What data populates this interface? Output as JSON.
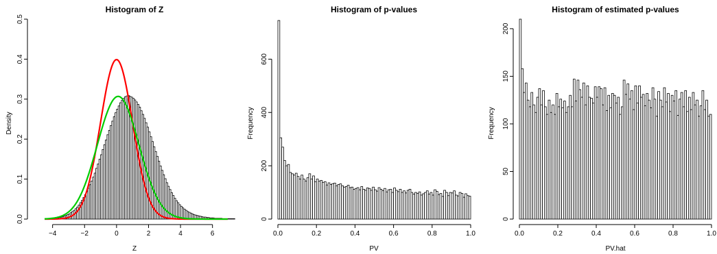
{
  "chart_data": [
    {
      "type": "histogram",
      "title": "Histogram of Z",
      "xlabel": "Z",
      "ylabel": "Density",
      "xlim": [
        -4.8,
        7.0
      ],
      "ylim": [
        0,
        0.5
      ],
      "xticks": [
        -4,
        -2,
        0,
        2,
        4,
        6
      ],
      "yticks": [
        0.0,
        0.1,
        0.2,
        0.3,
        0.4,
        0.5
      ],
      "bin_start": -4.2,
      "bin_width": 0.1,
      "densities": [
        0.001,
        0.001,
        0.002,
        0.002,
        0.003,
        0.003,
        0.004,
        0.005,
        0.006,
        0.008,
        0.009,
        0.011,
        0.013,
        0.016,
        0.019,
        0.022,
        0.026,
        0.03,
        0.035,
        0.041,
        0.047,
        0.054,
        0.061,
        0.069,
        0.077,
        0.086,
        0.095,
        0.105,
        0.115,
        0.127,
        0.138,
        0.15,
        0.161,
        0.174,
        0.186,
        0.198,
        0.211,
        0.222,
        0.234,
        0.245,
        0.256,
        0.266,
        0.275,
        0.283,
        0.291,
        0.297,
        0.302,
        0.306,
        0.308,
        0.309,
        0.307,
        0.305,
        0.302,
        0.298,
        0.293,
        0.287,
        0.28,
        0.271,
        0.262,
        0.252,
        0.241,
        0.23,
        0.218,
        0.206,
        0.194,
        0.181,
        0.169,
        0.157,
        0.145,
        0.133,
        0.122,
        0.111,
        0.101,
        0.091,
        0.082,
        0.074,
        0.066,
        0.059,
        0.052,
        0.046,
        0.041,
        0.036,
        0.032,
        0.028,
        0.025,
        0.022,
        0.019,
        0.017,
        0.015,
        0.013,
        0.011,
        0.01,
        0.009,
        0.008,
        0.007,
        0.006,
        0.005,
        0.005,
        0.004,
        0.004,
        0.003,
        0.003,
        0.003,
        0.002,
        0.002,
        0.002,
        0.002,
        0.002,
        0.001,
        0.001,
        0.001,
        0.001,
        0.001,
        0.001,
        0.001,
        0.001
      ],
      "series": [
        {
          "name": "",
          "kind": "normal-density",
          "mean": 0,
          "sd": 1,
          "color": "#ff0000"
        },
        {
          "name": "",
          "kind": "normal-density",
          "mean": 0.1,
          "sd": 1.3,
          "color": "#00cc00"
        }
      ]
    },
    {
      "type": "histogram",
      "title": "Histogram of p-values",
      "xlabel": "PV",
      "ylabel": "Frequency",
      "xlim": [
        0,
        1
      ],
      "ylim": [
        0,
        750
      ],
      "xticks": [
        0.0,
        0.2,
        0.4,
        0.6,
        0.8,
        1.0
      ],
      "yticks": [
        0,
        200,
        400,
        600
      ],
      "bin_width": 0.01,
      "counts": [
        745,
        305,
        270,
        220,
        200,
        205,
        175,
        170,
        165,
        172,
        160,
        150,
        165,
        150,
        143,
        155,
        170,
        150,
        162,
        140,
        150,
        142,
        145,
        138,
        140,
        128,
        136,
        130,
        133,
        135,
        125,
        130,
        132,
        125,
        120,
        122,
        127,
        118,
        120,
        112,
        115,
        118,
        110,
        122,
        112,
        108,
        117,
        115,
        108,
        120,
        110,
        105,
        118,
        112,
        107,
        115,
        102,
        110,
        112,
        100,
        117,
        108,
        103,
        112,
        100,
        106,
        98,
        108,
        112,
        100,
        94,
        100,
        96,
        102,
        90,
        95,
        100,
        106,
        94,
        100,
        90,
        110,
        104,
        92,
        96,
        85,
        108,
        100,
        88,
        100,
        98,
        106,
        90,
        87,
        100,
        96,
        82,
        95,
        88,
        86
      ]
    },
    {
      "type": "histogram",
      "title": "Histogram of estimated p-values",
      "xlabel": "PV.hat",
      "ylabel": "Frequency",
      "xlim": [
        0,
        1
      ],
      "ylim": [
        0,
        210
      ],
      "xticks": [
        0.0,
        0.2,
        0.4,
        0.6,
        0.8,
        1.0
      ],
      "yticks": [
        0,
        50,
        100,
        150,
        200
      ],
      "bin_width": 0.01,
      "counts": [
        210,
        158,
        133,
        143,
        125,
        118,
        133,
        120,
        112,
        128,
        137,
        120,
        135,
        118,
        110,
        125,
        112,
        120,
        110,
        132,
        118,
        126,
        117,
        124,
        112,
        118,
        130,
        118,
        147,
        124,
        146,
        136,
        128,
        143,
        120,
        140,
        128,
        127,
        122,
        139,
        128,
        139,
        137,
        120,
        138,
        114,
        130,
        117,
        132,
        130,
        122,
        128,
        110,
        118,
        146,
        131,
        142,
        126,
        135,
        115,
        140,
        122,
        140,
        128,
        131,
        119,
        132,
        125,
        117,
        138,
        126,
        108,
        134,
        125,
        118,
        138,
        123,
        132,
        113,
        130,
        124,
        135,
        109,
        126,
        133,
        118,
        135,
        113,
        128,
        115,
        133,
        120,
        125,
        108,
        119,
        135,
        115,
        125,
        108,
        110
      ]
    }
  ]
}
